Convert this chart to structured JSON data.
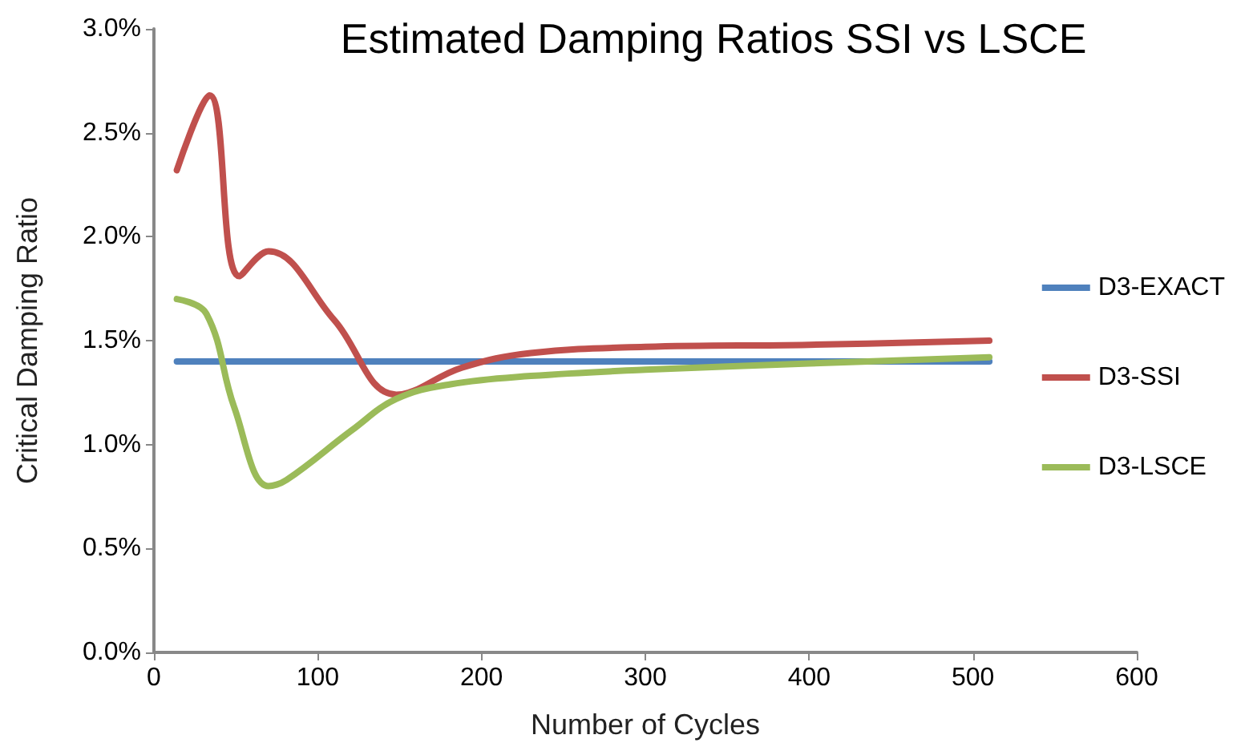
{
  "chart_data": {
    "type": "line",
    "title": "Estimated Damping Ratios SSI vs LSCE",
    "xlabel": "Number of Cycles",
    "ylabel": "Critical Damping Ratio",
    "xlim": [
      0,
      600
    ],
    "xticks": [
      0,
      100,
      200,
      300,
      400,
      500,
      600
    ],
    "ylim": [
      0,
      3.0
    ],
    "yticks": [
      {
        "value": 0,
        "label": "0.0%"
      },
      {
        "value": 0.5,
        "label": "0.5%"
      },
      {
        "value": 1.0,
        "label": "1.0%"
      },
      {
        "value": 1.5,
        "label": "1.5%"
      },
      {
        "value": 2.0,
        "label": "2.0%"
      },
      {
        "value": 2.5,
        "label": "2.5%"
      },
      {
        "value": 3.0,
        "label": "3.0%"
      }
    ],
    "grid": false,
    "legend": "right",
    "marker": "none",
    "line_style": "solid",
    "series": [
      {
        "name": "D3-EXACT",
        "color": "#4f81bd",
        "x": [
          14,
          510
        ],
        "values": [
          1.4,
          1.4
        ]
      },
      {
        "name": "D3-SSI",
        "color": "#c0504d",
        "x": [
          14,
          34,
          52,
          70,
          110,
          148,
          188,
          230,
          300,
          400,
          510
        ],
        "values": [
          2.32,
          2.68,
          1.81,
          1.93,
          1.6,
          1.24,
          1.37,
          1.44,
          1.47,
          1.48,
          1.5
        ]
      },
      {
        "name": "D3-LSCE",
        "color": "#9bbb59",
        "x": [
          14,
          32,
          49,
          70,
          81,
          121,
          148,
          181,
          230,
          300,
          400,
          510
        ],
        "values": [
          1.7,
          1.63,
          1.18,
          0.8,
          0.83,
          1.07,
          1.22,
          1.29,
          1.33,
          1.36,
          1.39,
          1.42
        ]
      }
    ]
  }
}
